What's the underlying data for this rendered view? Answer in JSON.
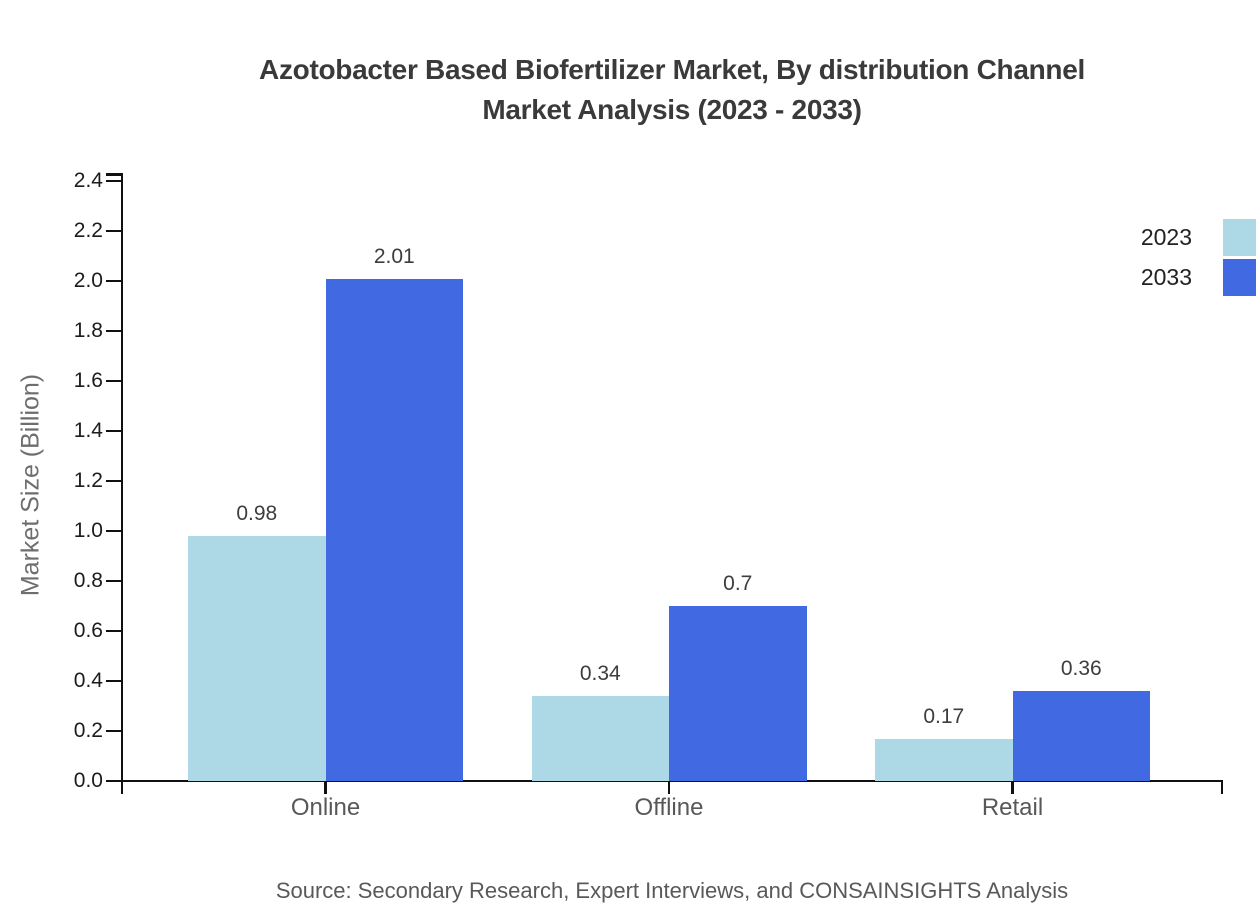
{
  "header": {
    "title_line1": "Azotobacter Based Biofertilizer Market, By distribution Channel",
    "title_line2": "Market Analysis (2023 - 2033)"
  },
  "footer": {
    "source": "Source: Secondary Research, Expert Interviews, and CONSAINSIGHTS Analysis"
  },
  "chart_data": {
    "type": "bar",
    "title": "Azotobacter Based Biofertilizer Market, By distribution Channel Market Analysis (2023 - 2033)",
    "categories": [
      "Online",
      "Offline",
      "Retail"
    ],
    "series": [
      {
        "name": "2023",
        "color": "#ADD8E6",
        "values": [
          0.98,
          0.34,
          0.17
        ]
      },
      {
        "name": "2033",
        "color": "#4169E1",
        "values": [
          2.01,
          0.7,
          0.36
        ]
      }
    ],
    "xlabel": "",
    "ylabel": "Market Size (Billion)",
    "ylim": [
      0,
      2.4
    ],
    "ytick_step": 0.2,
    "grid": false,
    "legend_position": "top-right",
    "axis_color": "#111111",
    "value_label_color": "#3d3d3d"
  }
}
